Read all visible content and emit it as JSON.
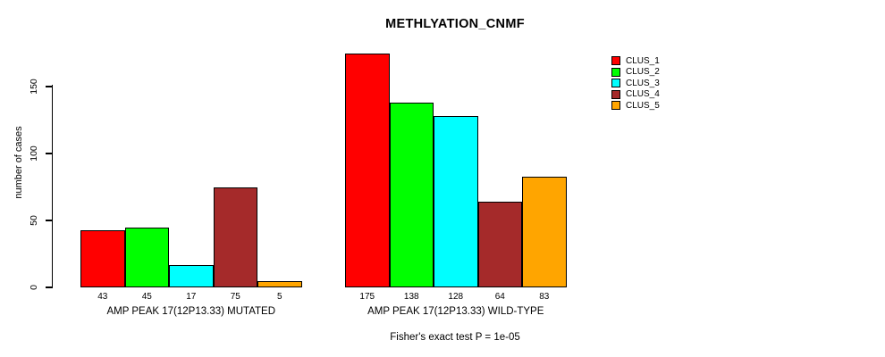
{
  "chart_data": {
    "type": "bar",
    "title": "METHLYATION_CNMF",
    "ylabel": "number of cases",
    "ylim": [
      0,
      175
    ],
    "yticks": [
      0,
      50,
      100,
      150
    ],
    "grid": false,
    "legend_position": "right",
    "series": [
      {
        "name": "CLUS_1",
        "color": "#FF0000"
      },
      {
        "name": "CLUS_2",
        "color": "#00FF00"
      },
      {
        "name": "CLUS_3",
        "color": "#00FFFF"
      },
      {
        "name": "CLUS_4",
        "color": "#A52A2A"
      },
      {
        "name": "CLUS_5",
        "color": "#FFA500"
      }
    ],
    "groups": [
      {
        "label": "AMP PEAK 17(12P13.33) MUTATED",
        "values": [
          43,
          45,
          17,
          75,
          5
        ]
      },
      {
        "label": "AMP PEAK 17(12P13.33) WILD-TYPE",
        "values": [
          175,
          138,
          128,
          64,
          83
        ]
      }
    ],
    "annotation": "Fisher's exact test P = 1e-05"
  }
}
